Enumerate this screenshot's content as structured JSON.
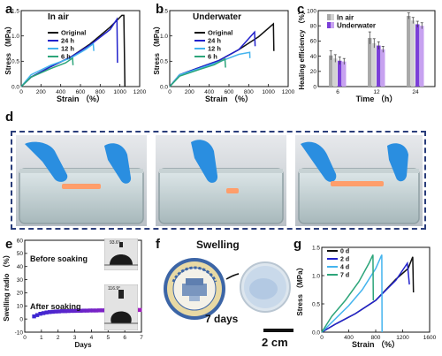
{
  "figure": {
    "panels": {
      "a": {
        "letter": "a",
        "title": "In air"
      },
      "b": {
        "letter": "b",
        "title": "Underwater"
      },
      "c": {
        "letter": "c"
      },
      "d": {
        "letter": "d"
      },
      "e": {
        "letter": "e",
        "before_label": "Before soaking",
        "after_label": "After soaking",
        "angle_before": "93.6°",
        "angle_after": "116.9°"
      },
      "f": {
        "letter": "f",
        "title": "Swelling",
        "days_label": "7 days",
        "scale_label": "2 cm"
      },
      "g": {
        "letter": "g"
      }
    }
  },
  "chart_data": [
    {
      "id": "a",
      "type": "line",
      "title": "In air",
      "xlabel": "Strain （%）",
      "ylabel": "Stress （MPa）",
      "xlim": [
        0,
        1200
      ],
      "ylim": [
        0,
        1.6
      ],
      "xticks": [
        "0",
        "200",
        "400",
        "600",
        "800",
        "1000",
        "1200"
      ],
      "yticks": [
        "0.0",
        "0.5",
        "1.0",
        "1.5"
      ],
      "series": [
        {
          "name": "Original",
          "color": "#111111",
          "x": [
            0,
            100,
            300,
            500,
            700,
            900,
            1020,
            1040,
            1050
          ],
          "y": [
            0,
            0.2,
            0.42,
            0.62,
            0.9,
            1.25,
            1.5,
            1.5,
            0
          ]
        },
        {
          "name": "24 h",
          "color": "#2222cc",
          "x": [
            0,
            100,
            300,
            500,
            700,
            900,
            970,
            975
          ],
          "y": [
            0,
            0.2,
            0.42,
            0.62,
            0.88,
            1.2,
            1.42,
            0.5
          ]
        },
        {
          "name": "12 h",
          "color": "#44b4ee",
          "x": [
            0,
            100,
            300,
            500,
            650,
            730,
            735
          ],
          "y": [
            0,
            0.25,
            0.45,
            0.6,
            0.78,
            0.9,
            0.75
          ]
        },
        {
          "name": "6 h",
          "color": "#2da57a",
          "x": [
            0,
            100,
            300,
            450,
            520,
            525
          ],
          "y": [
            0,
            0.2,
            0.38,
            0.5,
            0.6,
            0.45
          ]
        }
      ]
    },
    {
      "id": "b",
      "type": "line",
      "title": "Underwater",
      "xlabel": "Strain （%）",
      "ylabel": "Stress （MPa）",
      "xlim": [
        0,
        1200
      ],
      "ylim": [
        0,
        1.6
      ],
      "xticks": [
        "0",
        "200",
        "400",
        "600",
        "800",
        "1000",
        "1200"
      ],
      "yticks": [
        "0.0",
        "0.5",
        "1.0",
        "1.5"
      ],
      "series": [
        {
          "name": "Original",
          "color": "#111111",
          "x": [
            0,
            100,
            300,
            500,
            700,
            900,
            1050,
            1055
          ],
          "y": [
            0,
            0.25,
            0.4,
            0.55,
            0.78,
            1.05,
            1.32,
            0.75
          ]
        },
        {
          "name": "24 h",
          "color": "#2222cc",
          "x": [
            0,
            100,
            300,
            500,
            700,
            860,
            865
          ],
          "y": [
            0,
            0.25,
            0.4,
            0.55,
            0.78,
            1.15,
            0.85
          ]
        },
        {
          "name": "12 h",
          "color": "#44b4ee",
          "x": [
            0,
            100,
            300,
            500,
            700,
            810,
            812
          ],
          "y": [
            0,
            0.25,
            0.38,
            0.52,
            0.68,
            0.72,
            0.6
          ]
        },
        {
          "name": "6 h",
          "color": "#2da57a",
          "x": [
            0,
            100,
            300,
            450,
            560,
            565
          ],
          "y": [
            0,
            0.22,
            0.36,
            0.46,
            0.58,
            0.4
          ]
        }
      ]
    },
    {
      "id": "c",
      "type": "bar",
      "xlabel": "Time （h）",
      "ylabel": "Healing efficiency （%）",
      "ylim": [
        0,
        100
      ],
      "yticks": [
        "0",
        "20",
        "40",
        "60",
        "80",
        "100"
      ],
      "categories": [
        "6",
        "12",
        "24"
      ],
      "series": [
        {
          "name": "In air",
          "color": "#a9a9a9",
          "values": [
            41,
            64,
            93
          ]
        },
        {
          "name": "In air",
          "color": "#d2d2d2",
          "values": [
            37,
            57,
            87
          ]
        },
        {
          "name": "Underwater",
          "color": "#7b3fd8",
          "values": [
            34,
            54,
            82
          ]
        },
        {
          "name": "Underwater",
          "color": "#c7a2f0",
          "values": [
            33,
            49,
            80
          ]
        }
      ],
      "errors": [
        [
          6,
          8,
          4
        ],
        [
          5,
          6,
          4
        ],
        [
          5,
          5,
          4
        ],
        [
          4,
          4,
          4
        ]
      ],
      "legend": [
        "In air",
        "Underwater"
      ]
    },
    {
      "id": "e",
      "type": "scatter",
      "xlabel": "Days",
      "ylabel": "Swelling radio （%）",
      "xlim": [
        -0.5,
        7
      ],
      "ylim": [
        -10,
        60
      ],
      "xticks": [
        "0",
        "1",
        "2",
        "3",
        "4",
        "5",
        "6",
        "7"
      ],
      "yticks": [
        "-10",
        "0",
        "10",
        "20",
        "30",
        "40",
        "50",
        "60"
      ],
      "x": [
        0.1,
        0.3,
        0.5,
        0.7,
        0.9,
        1.1,
        1.3,
        1.5,
        1.7,
        1.9,
        2.1,
        2.3,
        2.5,
        2.7,
        2.9,
        3.1,
        3.3,
        3.5,
        3.7,
        3.9,
        4.1,
        4.3,
        4.5,
        4.7,
        4.9,
        5.1,
        5.3,
        5.5,
        5.7,
        5.9,
        6.1,
        6.3,
        6.5,
        6.7,
        6.9
      ],
      "y": [
        2,
        3,
        4,
        4.5,
        5,
        5.3,
        5.5,
        5.7,
        5.8,
        6,
        6,
        6.1,
        6.2,
        6.2,
        6.3,
        6.3,
        6.4,
        6.4,
        6.5,
        6.5,
        6.5,
        6.6,
        6.6,
        6.6,
        6.7,
        6.7,
        6.7,
        6.7,
        6.8,
        6.8,
        6.8,
        6.8,
        6.9,
        6.9,
        6.9
      ]
    },
    {
      "id": "g",
      "type": "line",
      "xlabel": "Strain （%）",
      "ylabel": "Stress （MPa）",
      "xlim": [
        0,
        1600
      ],
      "ylim": [
        0,
        1.6
      ],
      "xticks": [
        "0",
        "400",
        "800",
        "1200",
        "1600"
      ],
      "yticks": [
        "0.0",
        "0.5",
        "1.0",
        "1.5"
      ],
      "series": [
        {
          "name": "0 d",
          "color": "#111111",
          "x": [
            0,
            200,
            500,
            800,
            1100,
            1280,
            1350,
            1360
          ],
          "y": [
            0,
            0.15,
            0.35,
            0.6,
            1.0,
            1.2,
            1.42,
            0.75
          ]
        },
        {
          "name": "2 d",
          "color": "#2222cc",
          "x": [
            0,
            200,
            500,
            800,
            1100,
            1270,
            1300
          ],
          "y": [
            0,
            0.15,
            0.35,
            0.6,
            0.98,
            1.3,
            0.9
          ]
        },
        {
          "name": "4 d",
          "color": "#44b4ee",
          "x": [
            0,
            200,
            400,
            600,
            800,
            890,
            895
          ],
          "y": [
            0,
            0.25,
            0.5,
            0.8,
            1.2,
            1.46,
            0.0
          ]
        },
        {
          "name": "7 d",
          "color": "#2da57a",
          "x": [
            0,
            150,
            350,
            550,
            700,
            760,
            765
          ],
          "y": [
            0,
            0.3,
            0.6,
            0.95,
            1.3,
            1.46,
            0.6
          ]
        }
      ]
    }
  ]
}
